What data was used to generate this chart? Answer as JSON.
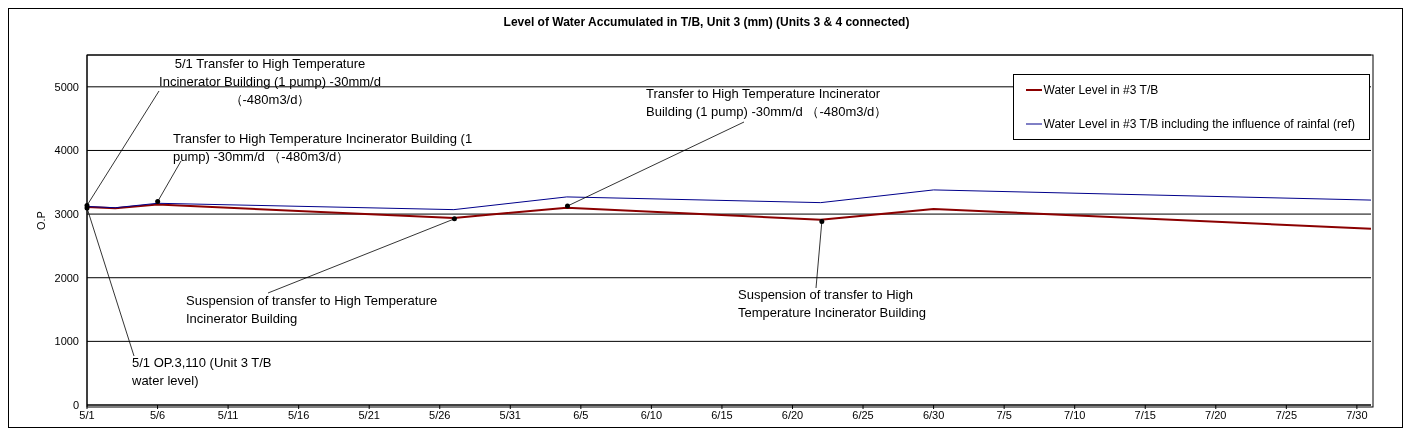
{
  "chart_data": {
    "type": "line",
    "title": "Level of Water Accumulated in T/B, Unit 3 (mm) (Units 3 & 4 connected)",
    "ylabel": "O.P",
    "x": [
      "--05-01",
      "--05-03",
      "--05-06",
      "--05-27",
      "--06-04",
      "--06-22",
      "--06-30",
      "--07-31"
    ],
    "series": [
      {
        "name": "Water Level in #3 T/B",
        "color": "#8b0000",
        "values": [
          3110,
          3090,
          3150,
          2940,
          3100,
          2910,
          3080,
          2770
        ]
      },
      {
        "name": "Water Level in #3 T/B including the influence of rainfal (ref)",
        "color": "#00008b",
        "values": [
          3120,
          3100,
          3170,
          3070,
          3270,
          3180,
          3380,
          3220
        ]
      }
    ],
    "xlim": [
      "--05-01",
      "--07-31"
    ],
    "xticks": [
      {
        "value": "--05-01",
        "label": "5/1"
      },
      {
        "value": "--05-06",
        "label": "5/6"
      },
      {
        "value": "--05-11",
        "label": "5/11"
      },
      {
        "value": "--05-16",
        "label": "5/16"
      },
      {
        "value": "--05-21",
        "label": "5/21"
      },
      {
        "value": "--05-26",
        "label": "5/26"
      },
      {
        "value": "--05-31",
        "label": "5/31"
      },
      {
        "value": "--06-05",
        "label": "6/5"
      },
      {
        "value": "--06-10",
        "label": "6/10"
      },
      {
        "value": "--06-15",
        "label": "6/15"
      },
      {
        "value": "--06-20",
        "label": "6/20"
      },
      {
        "value": "--06-25",
        "label": "6/25"
      },
      {
        "value": "--06-30",
        "label": "6/30"
      },
      {
        "value": "--07-05",
        "label": "7/5"
      },
      {
        "value": "--07-10",
        "label": "7/10"
      },
      {
        "value": "--07-15",
        "label": "7/15"
      },
      {
        "value": "--07-20",
        "label": "7/20"
      },
      {
        "value": "--07-25",
        "label": "7/25"
      },
      {
        "value": "--07-30",
        "label": "7/30"
      }
    ],
    "ylim": [
      0,
      5500
    ],
    "yticks": [
      0,
      1000,
      2000,
      3000,
      4000,
      5000
    ],
    "grid": "y",
    "legend": "top right",
    "marker": "none",
    "line_style": "solid",
    "annotations": [
      {
        "text": "5/1 Transfer to High Temperature Incinerator Building (1 pump) -30mm/d （-480m3/d）",
        "x": "--05-01",
        "y": 3150
      },
      {
        "text": "Transfer to High Temperature Incinerator Building (1 pump) -30mm/d （-480m3/d）",
        "x": "--05-06",
        "y": 3210
      },
      {
        "text": "Suspension of transfer to High Temperature Incinerator Building",
        "x": "--05-27",
        "y": 2940
      },
      {
        "text": "Transfer to High Temperature Incinerator Building (1 pump) -30mm/d （-480m3/d）",
        "x": "--06-04",
        "y": 3140
      },
      {
        "text": "Suspension of transfer to High Temperature Incinerator Building",
        "x": "--06-22",
        "y": 2900
      },
      {
        "text": "5/1 OP.3,110 (Unit 3 T/B water level)",
        "x": "--05-01",
        "y": 3110
      }
    ]
  }
}
